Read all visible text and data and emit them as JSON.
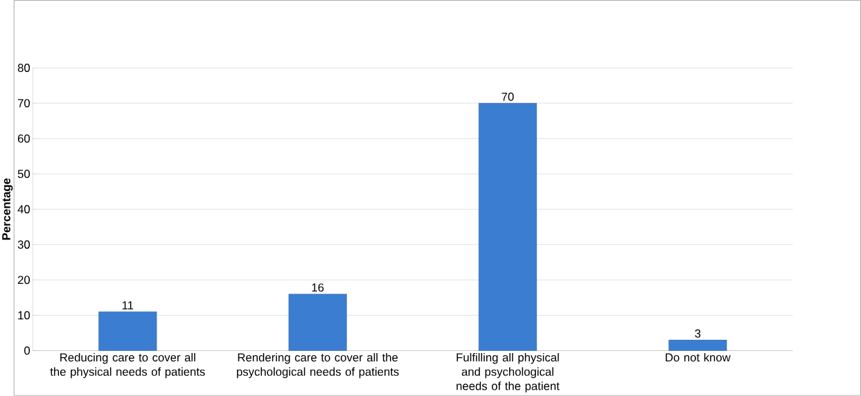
{
  "chart_data": {
    "type": "bar",
    "ylabel": "Percentage",
    "categories": [
      "Reducing care to cover all the physical needs of patients",
      "Rendering care to cover all the psychological needs of patients",
      "Fulfilling all physical and psychological needs of the patient",
      "Do not know"
    ],
    "values": [
      11,
      16,
      70,
      3
    ],
    "color": "#3b7dd0",
    "ylim": [
      0,
      80
    ],
    "yticks": [
      0,
      10,
      20,
      30,
      40,
      50,
      60,
      70,
      80
    ],
    "grid": "y",
    "data_labels": true
  }
}
